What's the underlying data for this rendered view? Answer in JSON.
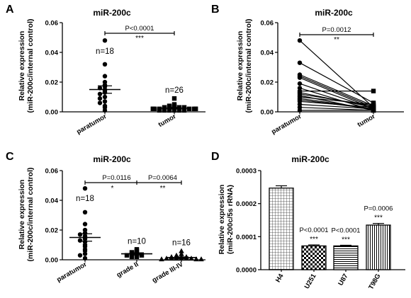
{
  "figure": {
    "shared_ylabel_line1": "Relative expression",
    "shared_ylabel_line2": "(miR-200c/internal control)"
  },
  "chart_data": [
    {
      "panel": "A",
      "type": "scatter",
      "title": "miR-200c",
      "ylabel": [
        "Relative expression",
        "(miR-200c/internal control)"
      ],
      "ylim": [
        0,
        0.06
      ],
      "yticks": [
        "0.00",
        "0.02",
        "0.04",
        "0.06"
      ],
      "categories": [
        "paratumor",
        "tumor"
      ],
      "marker": "circle+square",
      "groups": [
        {
          "category": "paratumor",
          "n_label": "n=18",
          "marker": "circle",
          "mean": 0.015,
          "sem": 0.0025,
          "points": [
            0.048,
            0.032,
            0.024,
            0.02,
            0.018,
            0.017,
            0.016,
            0.015,
            0.014,
            0.013,
            0.012,
            0.01,
            0.009,
            0.007,
            0.006,
            0.004,
            0.003,
            0.001
          ]
        },
        {
          "category": "tumor",
          "n_label": "n=26",
          "marker": "square",
          "mean": 0.0025,
          "sem": 0.0005,
          "points": [
            0.009,
            0.005,
            0.004,
            0.004,
            0.003,
            0.003,
            0.003,
            0.003,
            0.003,
            0.002,
            0.002,
            0.002,
            0.002,
            0.002,
            0.002,
            0.002,
            0.002,
            0.002,
            0.002,
            0.002,
            0.001,
            0.001,
            0.001,
            0.001,
            0.001,
            0.001
          ]
        }
      ],
      "comparisons": [
        {
          "from": "paratumor",
          "to": "tumor",
          "p_label": "P<0.0001",
          "stars": "***"
        }
      ]
    },
    {
      "panel": "B",
      "type": "line",
      "title": "miR-200c",
      "ylabel": [
        "Relative expression",
        "(miR-200c/internal control)"
      ],
      "ylim": [
        0,
        0.06
      ],
      "yticks": [
        "0.00",
        "0.02",
        "0.04",
        "0.06"
      ],
      "categories": [
        "paratumor",
        "tumor"
      ],
      "paired": true,
      "pairs": [
        [
          0.048,
          0.003
        ],
        [
          0.033,
          0.006
        ],
        [
          0.025,
          0.004
        ],
        [
          0.024,
          0.003
        ],
        [
          0.023,
          0.002
        ],
        [
          0.019,
          0.002
        ],
        [
          0.016,
          0.001
        ],
        [
          0.014,
          0.014
        ],
        [
          0.013,
          0.003
        ],
        [
          0.012,
          0.004
        ],
        [
          0.011,
          0.001
        ],
        [
          0.01,
          0.005
        ],
        [
          0.009,
          0.002
        ],
        [
          0.008,
          0.002
        ],
        [
          0.007,
          0.003
        ],
        [
          0.005,
          0.002
        ],
        [
          0.003,
          0.001
        ],
        [
          0.001,
          0.001
        ]
      ],
      "comparisons": [
        {
          "from": "paratumor",
          "to": "tumor",
          "p_label": "P=0.0012",
          "stars": "**"
        }
      ]
    },
    {
      "panel": "C",
      "type": "scatter",
      "title": "miR-200c",
      "ylabel": [
        "Relative expression",
        "(miR-200c/internal control)"
      ],
      "ylim": [
        0,
        0.06
      ],
      "yticks": [
        "0.00",
        "0.02",
        "0.04",
        "0.06"
      ],
      "categories": [
        "paratumor",
        "grade II",
        "grade III-IV"
      ],
      "groups": [
        {
          "category": "paratumor",
          "n_label": "n=18",
          "marker": "circle",
          "mean": 0.015,
          "sem": 0.0025,
          "points": [
            0.048,
            0.032,
            0.024,
            0.02,
            0.018,
            0.017,
            0.016,
            0.015,
            0.014,
            0.013,
            0.012,
            0.01,
            0.009,
            0.007,
            0.006,
            0.004,
            0.003,
            0.001
          ]
        },
        {
          "category": "grade II",
          "n_label": "n=10",
          "marker": "square",
          "mean": 0.004,
          "sem": 0.0007,
          "points": [
            0.007,
            0.006,
            0.005,
            0.005,
            0.004,
            0.004,
            0.003,
            0.003,
            0.002,
            0.002
          ]
        },
        {
          "category": "grade III-IV",
          "n_label": "n=16",
          "marker": "triangle",
          "mean": 0.0015,
          "sem": 0.0004,
          "points": [
            0.006,
            0.004,
            0.003,
            0.002,
            0.002,
            0.002,
            0.002,
            0.001,
            0.001,
            0.001,
            0.001,
            0.001,
            0.001,
            0.0005,
            0.0005,
            0.0005
          ]
        }
      ],
      "comparisons": [
        {
          "from": "paratumor",
          "to": "grade II",
          "p_label": "P=0.0116",
          "stars": "*"
        },
        {
          "from": "grade II",
          "to": "grade III-IV",
          "p_label": "P=0.0064",
          "stars": "**"
        }
      ]
    },
    {
      "panel": "D",
      "type": "bar",
      "title": "miR-200c",
      "ylabel": [
        "Relative expression",
        "(miR-200c/5s rRNA)"
      ],
      "ylim": [
        0,
        0.0003
      ],
      "yticks": [
        "0.0000",
        "0.0001",
        "0.0002",
        "0.0003"
      ],
      "categories": [
        "H4",
        "U251",
        "U87",
        "T98G"
      ],
      "values": [
        0.000247,
        7.2e-05,
        7.2e-05,
        0.000135
      ],
      "errors": [
        7e-06,
        3e-06,
        2e-06,
        5e-06
      ],
      "patterns": [
        "grid",
        "checker",
        "hstripe",
        "vstripe"
      ],
      "annotations": [
        {
          "category": "H4",
          "p_label": "",
          "stars": ""
        },
        {
          "category": "U251",
          "p_label": "P<0.0001",
          "stars": "***"
        },
        {
          "category": "U87",
          "p_label": "P<0.0001",
          "stars": "***"
        },
        {
          "category": "T98G",
          "p_label": "P=0.0006",
          "stars": "***"
        }
      ]
    }
  ]
}
